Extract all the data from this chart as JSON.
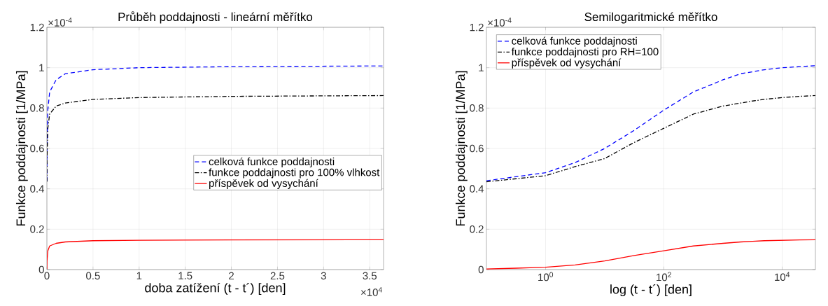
{
  "chart_data": [
    {
      "type": "line",
      "title": "Průběh poddajnosti - lineární měřítko",
      "xlabel": "doba zatížení (t - t´) [den]",
      "ylabel": "Funkce poddajnosti [1/MPa]",
      "annotations": [
        "×10$^{-4}$",
        "×10$^{4}$"
      ],
      "x": [
        1e-05,
        0.0001,
        0.001,
        0.01,
        0.03,
        0.1,
        0.2,
        0.5,
        1,
        2,
        3.65
      ],
      "series": [
        {
          "name": "celková funkce poddajnosti",
          "color": "#0000ff",
          "line_style": "dashed",
          "values": [
            0.44,
            0.48,
            0.6,
            0.79,
            0.88,
            0.94,
            0.97,
            0.99,
            1.0,
            1.005,
            1.009
          ]
        },
        {
          "name": "funkce poddajnosti pro 100% vlhkost",
          "color": "#000000",
          "line_style": "dashdot",
          "values": [
            0.435,
            0.465,
            0.55,
            0.7,
            0.77,
            0.81,
            0.825,
            0.843,
            0.852,
            0.858,
            0.862
          ]
        },
        {
          "name": "příspěvek od vysychání",
          "color": "#ff0000",
          "line_style": "solid",
          "values": [
            0.003,
            0.012,
            0.043,
            0.093,
            0.117,
            0.13,
            0.137,
            0.143,
            0.145,
            0.147,
            0.148
          ]
        }
      ],
      "xlim": [
        0,
        3.65
      ],
      "ylim": [
        0,
        1.2
      ],
      "xticks": [
        0,
        0.5,
        1,
        1.5,
        2,
        2.5,
        3,
        3.5
      ],
      "yticks": [
        0,
        0.2,
        0.4,
        0.6,
        0.8,
        1,
        1.2
      ],
      "grid": true,
      "legend": "right"
    },
    {
      "type": "line",
      "title": "Semilogaritmické měřítko",
      "xlabel": "log (t - t´) [den]",
      "ylabel": "Funkce poddajnosti [1/MPa]",
      "annotations": [
        "×10$^{-4}$"
      ],
      "x": [
        0.1,
        0.316,
        1,
        3.16,
        10,
        31.6,
        100,
        316,
        1000,
        2000,
        3162,
        5000,
        10000,
        20000,
        36500
      ],
      "series": [
        {
          "name": "celková funkce poddajnosti",
          "color": "#0000ff",
          "line_style": "dashed",
          "values": [
            0.44,
            0.46,
            0.48,
            0.53,
            0.6,
            0.69,
            0.79,
            0.88,
            0.94,
            0.97,
            0.98,
            0.99,
            1.0,
            1.005,
            1.01
          ]
        },
        {
          "name": "funkce poddajnosti pro RH=100",
          "color": "#000000",
          "line_style": "dashdot",
          "values": [
            0.435,
            0.45,
            0.465,
            0.51,
            0.55,
            0.63,
            0.7,
            0.77,
            0.81,
            0.825,
            0.835,
            0.843,
            0.852,
            0.858,
            0.862
          ]
        },
        {
          "name": "příspěvek od vysychání",
          "color": "#ff0000",
          "line_style": "solid",
          "values": [
            0.003,
            0.007,
            0.012,
            0.023,
            0.043,
            0.07,
            0.093,
            0.117,
            0.13,
            0.137,
            0.14,
            0.143,
            0.145,
            0.147,
            0.148
          ]
        }
      ],
      "xlim": [
        0.1,
        36500
      ],
      "ylim": [
        0,
        1.2
      ],
      "xticks": [
        {
          "value": 1,
          "label": "10$^{0}$"
        },
        {
          "value": 100,
          "label": "10$^{2}$"
        },
        {
          "value": 10000,
          "label": "10$^{4}$"
        }
      ],
      "yticks": [
        0,
        0.2,
        0.4,
        0.6,
        0.8,
        1,
        1.2
      ],
      "grid": true,
      "log": "x",
      "legend": "top left"
    }
  ]
}
